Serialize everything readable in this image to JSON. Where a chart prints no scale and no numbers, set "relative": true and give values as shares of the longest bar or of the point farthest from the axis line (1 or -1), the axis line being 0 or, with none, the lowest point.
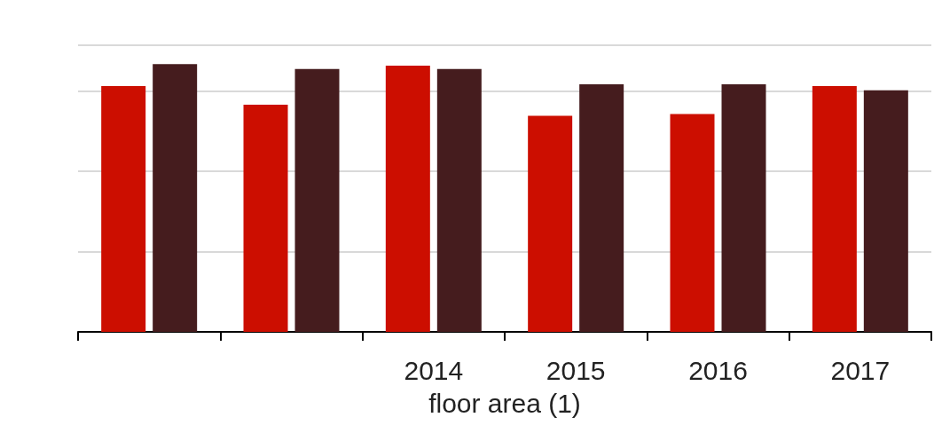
{
  "chart_data": {
    "type": "bar",
    "xlabel": "floor area (1)",
    "categories": [
      null,
      null,
      "2014",
      "2015",
      "2016",
      "2017"
    ],
    "series": [
      {
        "color": "#cc0e00",
        "values": [
          0.918,
          0.848,
          0.994,
          0.807,
          0.813,
          0.918
        ]
      },
      {
        "color": "#451c1e",
        "values": [
          1,
          0.981,
          0.981,
          0.924,
          0.924,
          0.902
        ]
      }
    ],
    "relative": true,
    "grid": "y"
  }
}
